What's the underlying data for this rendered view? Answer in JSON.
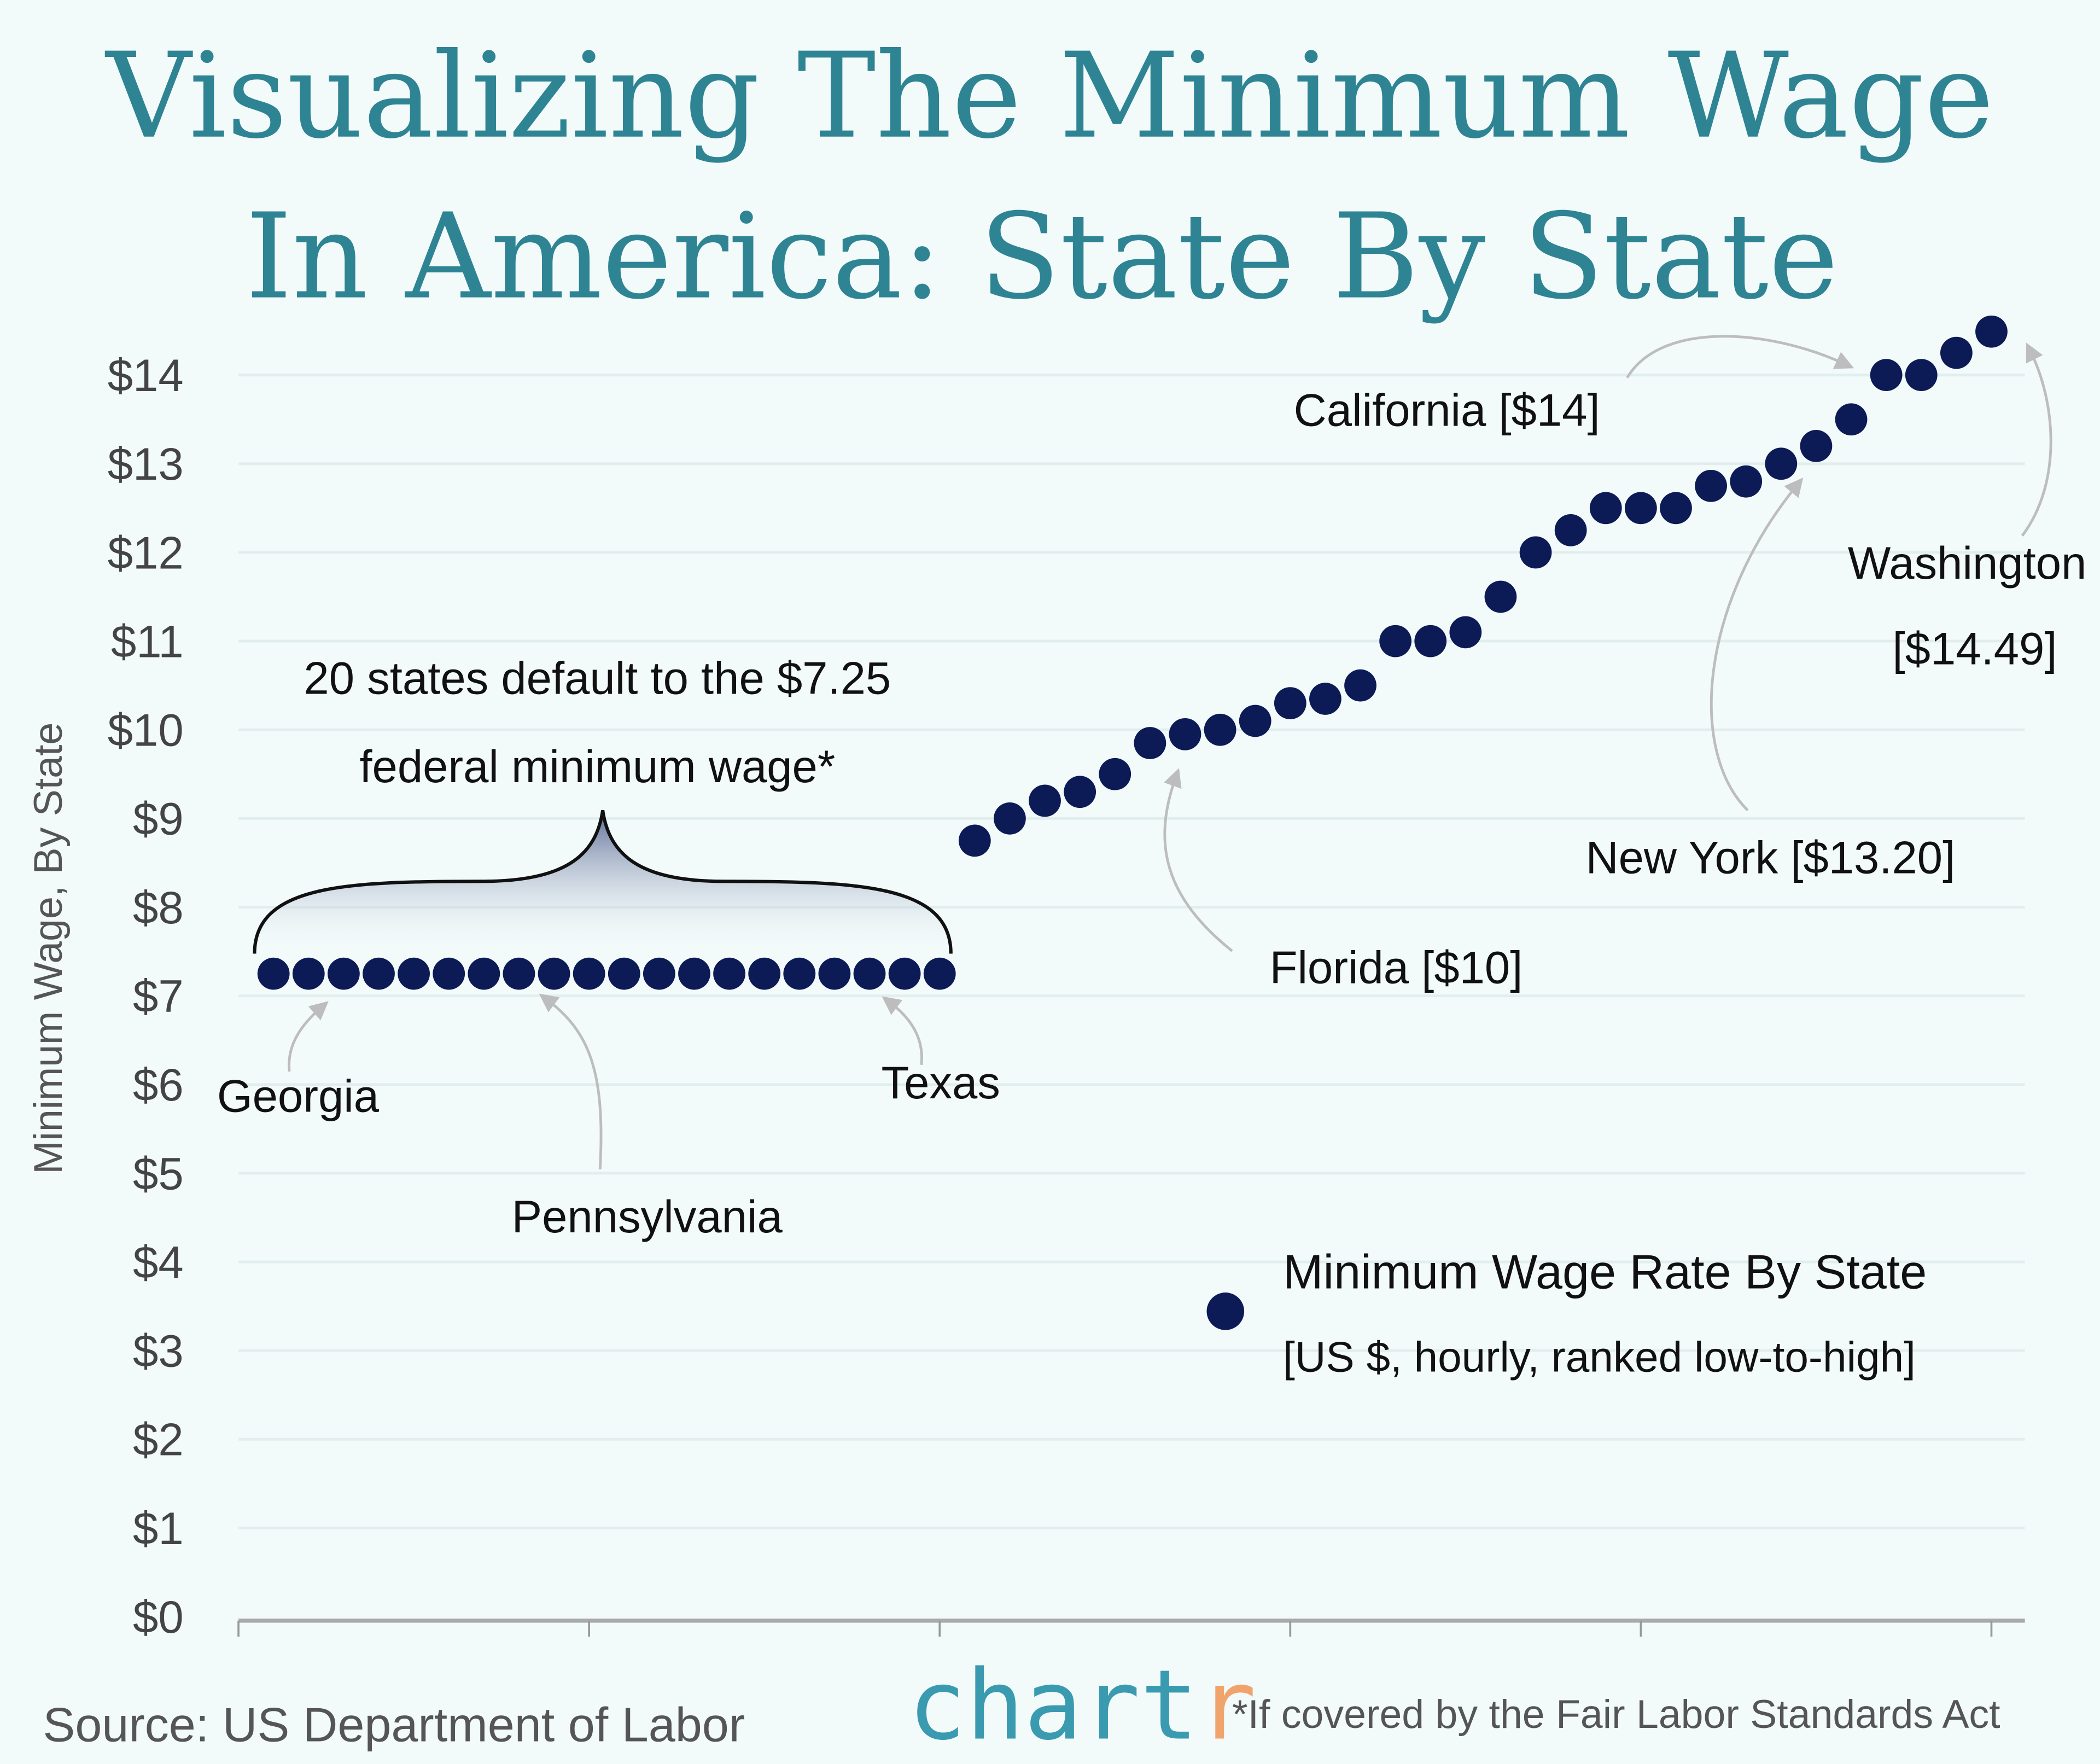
{
  "title_line1": "Visualizing The Minimum Wage",
  "title_line2": "In America: State By State",
  "colors": {
    "background": "#f2fafa",
    "title": "#2f8494",
    "dot": "#0c1a55",
    "logo_main": "#3a9ab0",
    "logo_accent": "#f0a46c"
  },
  "chart_data": {
    "type": "scatter",
    "ylabel": "Minimum Wage, By State",
    "ylim": [
      0,
      14
    ],
    "yticks": [
      "$0",
      "$1",
      "$2",
      "$3",
      "$4",
      "$5",
      "$6",
      "$7",
      "$8",
      "$9",
      "$10",
      "$11",
      "$12",
      "$13",
      "$14"
    ],
    "xlim": [
      0,
      50
    ],
    "xticks": [
      0,
      10,
      20,
      30,
      40,
      50
    ],
    "grid": true,
    "x": [
      1,
      2,
      3,
      4,
      5,
      6,
      7,
      8,
      9,
      10,
      11,
      12,
      13,
      14,
      15,
      16,
      17,
      18,
      19,
      20,
      21,
      22,
      23,
      24,
      25,
      26,
      27,
      28,
      29,
      30,
      31,
      32,
      33,
      34,
      35,
      36,
      37,
      38,
      39,
      40,
      41,
      42,
      43,
      44,
      45,
      46,
      47,
      48,
      49,
      50
    ],
    "values": [
      7.25,
      7.25,
      7.25,
      7.25,
      7.25,
      7.25,
      7.25,
      7.25,
      7.25,
      7.25,
      7.25,
      7.25,
      7.25,
      7.25,
      7.25,
      7.25,
      7.25,
      7.25,
      7.25,
      7.25,
      8.75,
      9.0,
      9.2,
      9.3,
      9.5,
      9.85,
      9.95,
      10.0,
      10.1,
      10.3,
      10.35,
      10.5,
      11.0,
      11.0,
      11.1,
      11.5,
      12.0,
      12.25,
      12.5,
      12.5,
      12.5,
      12.75,
      12.8,
      13.0,
      13.2,
      13.5,
      14.0,
      14.0,
      14.25,
      14.49
    ],
    "annotations": {
      "federal_line1": "20 states default to the $7.25",
      "federal_line2": "federal minimum wage*",
      "georgia": "Georgia",
      "pennsylvania": "Pennsylvania",
      "texas": "Texas",
      "florida": "Florida [$10]",
      "new_york": "New York [$13.20]",
      "california": "California [$14]",
      "washington_line1": "Washington",
      "washington_line2": "[$14.49]"
    },
    "legend": {
      "title": "Minimum Wage Rate By State",
      "subtitle": "[US $, hourly, ranked low-to-high]",
      "placement": "bottom-right"
    }
  },
  "footer": {
    "source": "Source: US Department of Labor",
    "logo": "chartr",
    "note": "*If covered by the Fair Labor Standards Act"
  }
}
